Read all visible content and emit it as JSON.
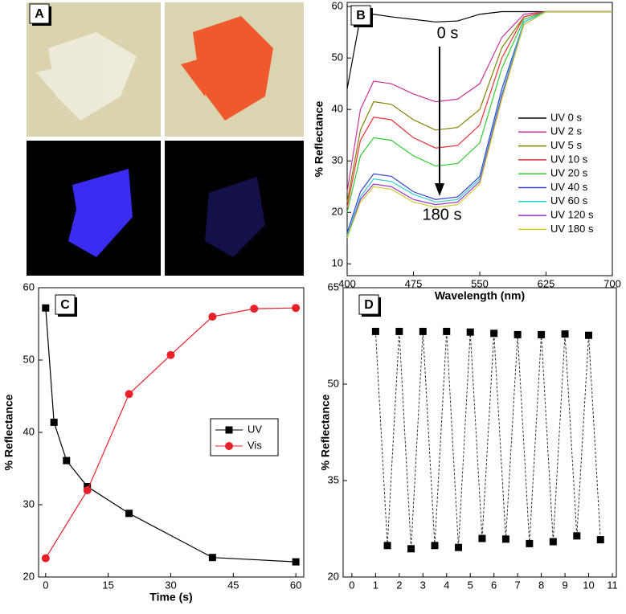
{
  "chart_data": [
    {
      "type": "image",
      "panel_label": "A"
    },
    {
      "type": "line",
      "panel_label": "B",
      "x_label": "Wavelength (nm)",
      "y_label": "% Reflectance",
      "x": [
        400,
        415,
        430,
        450,
        475,
        500,
        525,
        550,
        575,
        600,
        625,
        700
      ],
      "series": [
        {
          "name": "UV 0 s",
          "color": "#000000",
          "values": [
            44,
            58,
            58.5,
            58,
            57.5,
            57,
            57.2,
            58.5,
            59,
            59,
            59,
            59
          ]
        },
        {
          "name": "UV 2 s",
          "color": "#cc3399",
          "values": [
            24,
            40,
            45.5,
            45,
            43,
            41.5,
            42,
            45,
            54,
            58.5,
            59,
            59
          ]
        },
        {
          "name": "UV 5 s",
          "color": "#808000",
          "values": [
            22,
            36,
            41.5,
            41,
            38,
            36,
            36.5,
            40,
            52,
            58,
            59,
            59
          ]
        },
        {
          "name": "UV 10 s",
          "color": "#e8303a",
          "values": [
            21,
            34,
            38.5,
            38,
            34.5,
            32.5,
            33,
            37,
            50,
            58,
            59,
            59
          ]
        },
        {
          "name": "UV 20 s",
          "color": "#33cc33",
          "values": [
            20,
            31,
            34.5,
            34,
            31,
            29,
            29.5,
            33.5,
            48,
            57.5,
            59,
            59
          ]
        },
        {
          "name": "UV 40 s",
          "color": "#3344cc",
          "values": [
            16,
            24,
            27.5,
            27,
            24,
            22.5,
            23,
            27,
            44,
            57,
            59,
            59
          ]
        },
        {
          "name": "UV 60 s",
          "color": "#33cccc",
          "values": [
            15.5,
            23,
            26.5,
            26,
            23.5,
            22,
            22.5,
            26.5,
            43,
            57,
            59,
            59
          ]
        },
        {
          "name": "UV 120 s",
          "color": "#9933cc",
          "values": [
            15,
            22.5,
            25.5,
            25,
            22.5,
            21.5,
            22,
            26,
            42.5,
            56.5,
            59,
            59
          ]
        },
        {
          "name": "UV 180 s",
          "color": "#cccc33",
          "values": [
            15,
            22,
            25,
            24.5,
            22,
            21,
            21.5,
            25.5,
            42,
            56.5,
            59,
            59
          ]
        }
      ],
      "annotations": [
        "0 s",
        "180 s"
      ],
      "xlim": [
        400,
        700
      ],
      "xticks": [
        400,
        475,
        550,
        625,
        700
      ],
      "ylim": [
        7.7,
        60.8
      ],
      "yticks": [
        10,
        20,
        30,
        40,
        50,
        60
      ],
      "legend": "right"
    },
    {
      "type": "line",
      "panel_label": "C",
      "x_label": "Time (s)",
      "y_label": "% Reflectance",
      "series": [
        {
          "name": "UV",
          "color": "#000000",
          "marker": "square",
          "x": [
            0,
            2,
            5,
            10,
            20,
            40,
            60
          ],
          "values": [
            57.2,
            41.4,
            36.1,
            32.5,
            28.8,
            22.7,
            22.1
          ]
        },
        {
          "name": "Vis",
          "color": "#e8202a",
          "marker": "circle",
          "x": [
            0,
            10,
            20,
            30,
            40,
            50,
            60
          ],
          "values": [
            22.6,
            32.0,
            45.3,
            50.7,
            56.0,
            57.1,
            57.2
          ]
        }
      ],
      "xlim": [
        -1.7,
        61.9
      ],
      "xticks": [
        0,
        15,
        30,
        45,
        60
      ],
      "ylim": [
        20,
        60
      ],
      "yticks": [
        20,
        30,
        40,
        50,
        60
      ],
      "legend": "center right"
    },
    {
      "type": "scatter",
      "panel_label": "D",
      "y_label": "% Reflectance",
      "dashed_line": true,
      "color": "#000000",
      "x": [
        1,
        1.5,
        2,
        2.5,
        3,
        3.5,
        4,
        4.5,
        5,
        5.5,
        6,
        6.5,
        7,
        7.5,
        8,
        8.5,
        9,
        9.5,
        10,
        10.5
      ],
      "values": [
        58.2,
        24.9,
        58.2,
        24.4,
        58.2,
        24.9,
        58.2,
        24.6,
        58.1,
        26.0,
        57.9,
        25.9,
        57.7,
        25.2,
        57.7,
        25.5,
        57.8,
        26.4,
        57.6,
        25.8
      ],
      "xlim": [
        -0.37,
        11.17
      ],
      "xticks": [
        0,
        1,
        2,
        3,
        4,
        5,
        6,
        7,
        8,
        9,
        10,
        11
      ],
      "ylim": [
        20,
        65
      ],
      "yticks": [
        20,
        35,
        50,
        65
      ]
    }
  ]
}
